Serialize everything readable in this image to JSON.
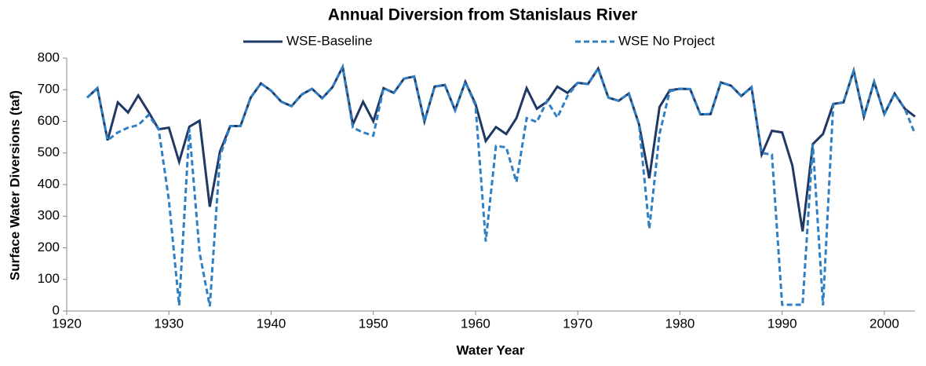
{
  "chart_data": {
    "type": "line",
    "title": "Annual Diversion from Stanislaus River",
    "x_label": "Water Year",
    "y_label": "Surface Water Diversions (taf)",
    "x": [
      1922,
      1923,
      1924,
      1925,
      1926,
      1927,
      1928,
      1929,
      1930,
      1931,
      1932,
      1933,
      1934,
      1935,
      1936,
      1937,
      1938,
      1939,
      1940,
      1941,
      1942,
      1943,
      1944,
      1945,
      1946,
      1947,
      1948,
      1949,
      1950,
      1951,
      1952,
      1953,
      1954,
      1955,
      1956,
      1957,
      1958,
      1959,
      1960,
      1961,
      1962,
      1963,
      1964,
      1965,
      1966,
      1967,
      1968,
      1969,
      1970,
      1971,
      1972,
      1973,
      1974,
      1975,
      1976,
      1977,
      1978,
      1979,
      1980,
      1981,
      1982,
      1983,
      1984,
      1985,
      1986,
      1987,
      1988,
      1989,
      1990,
      1991,
      1992,
      1993,
      1994,
      1995,
      1996,
      1997,
      1998,
      1999,
      2000,
      2001,
      2002,
      2003
    ],
    "series": [
      {
        "name": "WSE-Baseline",
        "color": "#203864",
        "line_style": "solid",
        "values": [
          675,
          705,
          540,
          660,
          628,
          682,
          630,
          575,
          580,
          472,
          583,
          602,
          330,
          505,
          585,
          585,
          675,
          720,
          697,
          662,
          648,
          685,
          703,
          673,
          708,
          772,
          590,
          662,
          600,
          705,
          690,
          735,
          742,
          600,
          710,
          715,
          635,
          725,
          655,
          538,
          582,
          560,
          610,
          705,
          640,
          662,
          710,
          690,
          722,
          718,
          767,
          675,
          665,
          688,
          590,
          420,
          645,
          698,
          703,
          702,
          622,
          623,
          723,
          713,
          680,
          708,
          495,
          570,
          565,
          460,
          252,
          528,
          560,
          655,
          660,
          760,
          615,
          725,
          623,
          688,
          640,
          615
        ]
      },
      {
        "name": "WSE No Project",
        "color": "#2e7fc4",
        "line_style": "dashed",
        "values": [
          675,
          705,
          540,
          565,
          580,
          588,
          620,
          575,
          350,
          18,
          575,
          185,
          15,
          490,
          585,
          585,
          675,
          720,
          697,
          662,
          648,
          685,
          703,
          673,
          708,
          772,
          580,
          565,
          555,
          705,
          690,
          735,
          742,
          600,
          710,
          715,
          635,
          725,
          650,
          220,
          522,
          518,
          408,
          610,
          598,
          665,
          612,
          680,
          722,
          718,
          767,
          675,
          665,
          688,
          590,
          260,
          560,
          695,
          703,
          702,
          622,
          623,
          723,
          713,
          680,
          708,
          500,
          495,
          20,
          20,
          20,
          528,
          18,
          655,
          660,
          760,
          615,
          725,
          623,
          688,
          640,
          560
        ]
      }
    ],
    "xlim": [
      1920,
      2003
    ],
    "xticks": [
      1920,
      1930,
      1940,
      1950,
      1960,
      1970,
      1980,
      1990,
      2000
    ],
    "ylim": [
      0,
      800
    ],
    "yticks": [
      0,
      100,
      200,
      300,
      400,
      500,
      600,
      700,
      800
    ]
  }
}
